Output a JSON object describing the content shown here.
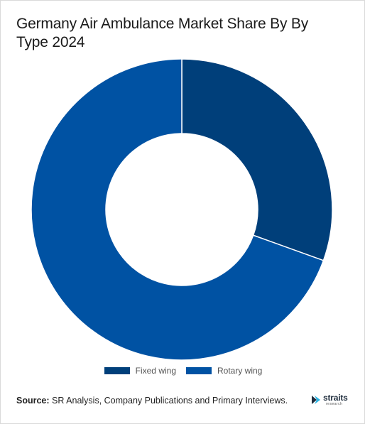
{
  "title": "Germany Air Ambulance Market Share By By Type 2024",
  "chart_data": {
    "type": "pie",
    "donut": true,
    "categories": [
      "Fixed wing",
      "Rotary wing"
    ],
    "values": [
      30.5,
      69.5
    ],
    "colors": [
      "#003f7a",
      "#0052a3"
    ],
    "legend_position": "bottom"
  },
  "source": {
    "label": "Source:",
    "text": " SR Analysis, Company Publications and Primary Interviews."
  },
  "logo": {
    "word": "straits",
    "sub": "research"
  }
}
